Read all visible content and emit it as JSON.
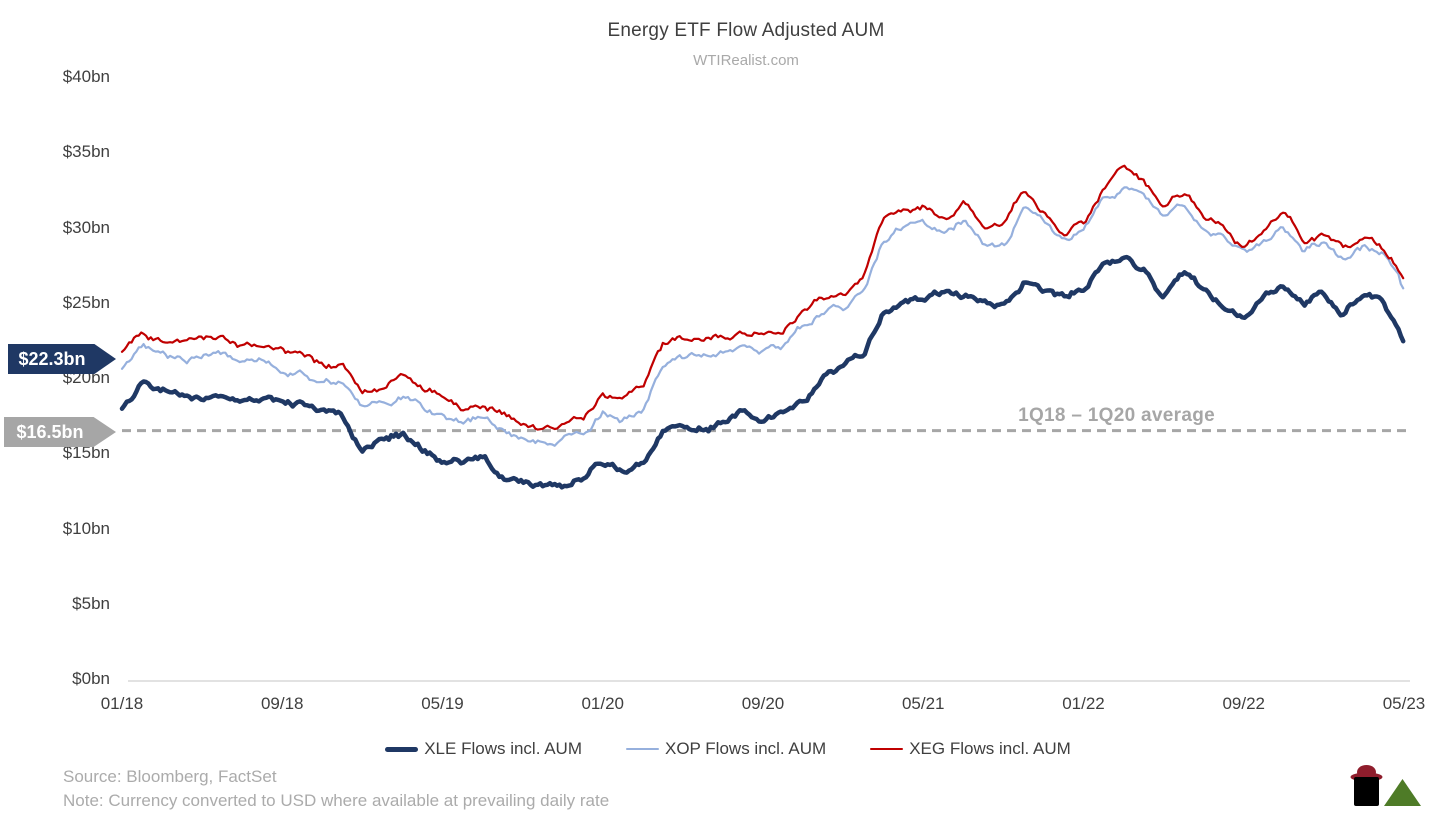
{
  "header": {
    "title": "Energy ETF Flow Adjusted AUM",
    "subtitle": "WTIRealist.com"
  },
  "annotations": {
    "latest_callout": "$22.3bn",
    "average_callout": "$16.5bn",
    "average_label": "1Q18 – 1Q20 average"
  },
  "footer": {
    "source": "Source: Bloomberg, FactSet",
    "note": "Note: Currency converted to USD where available at prevailing daily rate",
    "logo_icons": [
      "oil-barrel-icon",
      "cowboy-hat-icon",
      "green-triangle-icon"
    ]
  },
  "colors": {
    "xle": "#1f3864",
    "xop": "#96b0dd",
    "xeg": "#c00000",
    "gray": "#a6a6a6",
    "axis_text": "#3f3f3f",
    "baseline": "#d9d9d9",
    "logo_hat": "#8f1d2c",
    "logo_barrel": "#000000",
    "logo_triangle": "#4e7b27"
  },
  "chart_data": {
    "type": "line",
    "title": "Energy ETF Flow Adjusted AUM",
    "subtitle": "WTIRealist.com",
    "x_unit": "month (01/18 = index 0, 05/23 = index 64)",
    "ylim": [
      0,
      40
    ],
    "y_ticks": [
      {
        "label": "$40bn",
        "value": 40
      },
      {
        "label": "$35bn",
        "value": 35
      },
      {
        "label": "$30bn",
        "value": 30
      },
      {
        "label": "$25bn",
        "value": 25
      },
      {
        "label": "$20bn",
        "value": 20
      },
      {
        "label": "$15bn",
        "value": 15
      },
      {
        "label": "$10bn",
        "value": 10
      },
      {
        "label": "$5bn",
        "value": 5
      },
      {
        "label": "$0bn",
        "value": 0
      }
    ],
    "x_ticks": [
      {
        "label": "01/18",
        "month": 0
      },
      {
        "label": "09/18",
        "month": 8
      },
      {
        "label": "05/19",
        "month": 16
      },
      {
        "label": "01/20",
        "month": 24
      },
      {
        "label": "09/20",
        "month": 32
      },
      {
        "label": "05/21",
        "month": 40
      },
      {
        "label": "01/22",
        "month": 48
      },
      {
        "label": "09/22",
        "month": 56
      },
      {
        "label": "05/23",
        "month": 64
      }
    ],
    "average_line": {
      "value": 16.5,
      "label": "1Q18 – 1Q20 average",
      "style": "dashed"
    },
    "grid": false,
    "legend_position": "bottom-center",
    "series": [
      {
        "name": "XLE Flows incl. AUM",
        "color": "#1f3864",
        "line_weight": "thick",
        "latest_value_bn": 22.3,
        "monthly_values": [
          18.0,
          19.4,
          19.0,
          18.8,
          18.9,
          19.0,
          18.7,
          18.5,
          18.3,
          18.1,
          17.6,
          17.3,
          15.4,
          15.7,
          16.2,
          15.4,
          14.5,
          14.3,
          14.7,
          13.6,
          13.2,
          13.0,
          13.2,
          13.5,
          14.4,
          13.9,
          14.3,
          16.4,
          16.6,
          16.9,
          17.1,
          17.8,
          17.4,
          17.8,
          18.7,
          19.9,
          20.4,
          21.3,
          24.3,
          24.9,
          25.2,
          25.4,
          25.6,
          25.3,
          25.0,
          26.4,
          25.5,
          25.1,
          25.8,
          27.9,
          28.2,
          27.4,
          25.7,
          27.0,
          25.6,
          24.9,
          24.3,
          25.3,
          26.2,
          24.8,
          25.5,
          24.4,
          25.4,
          25.0,
          22.3
        ]
      },
      {
        "name": "XOP Flows incl. AUM",
        "color": "#96b0dd",
        "line_weight": "thin",
        "monthly_values": [
          20.6,
          22.0,
          21.4,
          21.2,
          21.4,
          21.4,
          21.1,
          20.9,
          20.7,
          20.5,
          19.9,
          19.6,
          18.0,
          18.3,
          18.8,
          18.0,
          17.2,
          16.9,
          17.4,
          16.6,
          16.2,
          15.8,
          16.0,
          16.3,
          17.7,
          17.2,
          17.9,
          20.6,
          21.0,
          21.4,
          21.5,
          22.2,
          22.0,
          22.4,
          23.3,
          24.2,
          24.6,
          25.8,
          29.2,
          29.8,
          30.2,
          29.8,
          30.6,
          29.2,
          29.0,
          31.2,
          30.3,
          28.8,
          29.4,
          32.0,
          32.6,
          31.8,
          30.3,
          31.4,
          29.7,
          29.0,
          28.0,
          28.9,
          29.9,
          28.4,
          29.0,
          27.8,
          28.8,
          28.2,
          25.8
        ]
      },
      {
        "name": "XEG Flows incl. AUM",
        "color": "#c00000",
        "line_weight": "thin",
        "monthly_values": [
          21.7,
          23.0,
          22.4,
          22.2,
          22.4,
          22.3,
          22.1,
          21.9,
          21.7,
          21.5,
          20.9,
          20.7,
          19.0,
          19.3,
          20.0,
          19.2,
          18.6,
          17.6,
          18.2,
          17.5,
          17.0,
          16.6,
          16.8,
          17.3,
          19.0,
          18.4,
          19.1,
          22.0,
          22.4,
          22.6,
          22.6,
          23.1,
          23.0,
          23.3,
          24.3,
          25.2,
          25.4,
          26.6,
          30.3,
          30.9,
          31.5,
          30.9,
          31.7,
          30.1,
          30.0,
          32.4,
          31.1,
          29.8,
          30.2,
          32.9,
          33.8,
          33.0,
          31.5,
          32.2,
          30.5,
          29.7,
          28.6,
          29.5,
          30.8,
          29.2,
          29.6,
          28.3,
          29.4,
          28.6,
          26.6
        ]
      }
    ]
  }
}
